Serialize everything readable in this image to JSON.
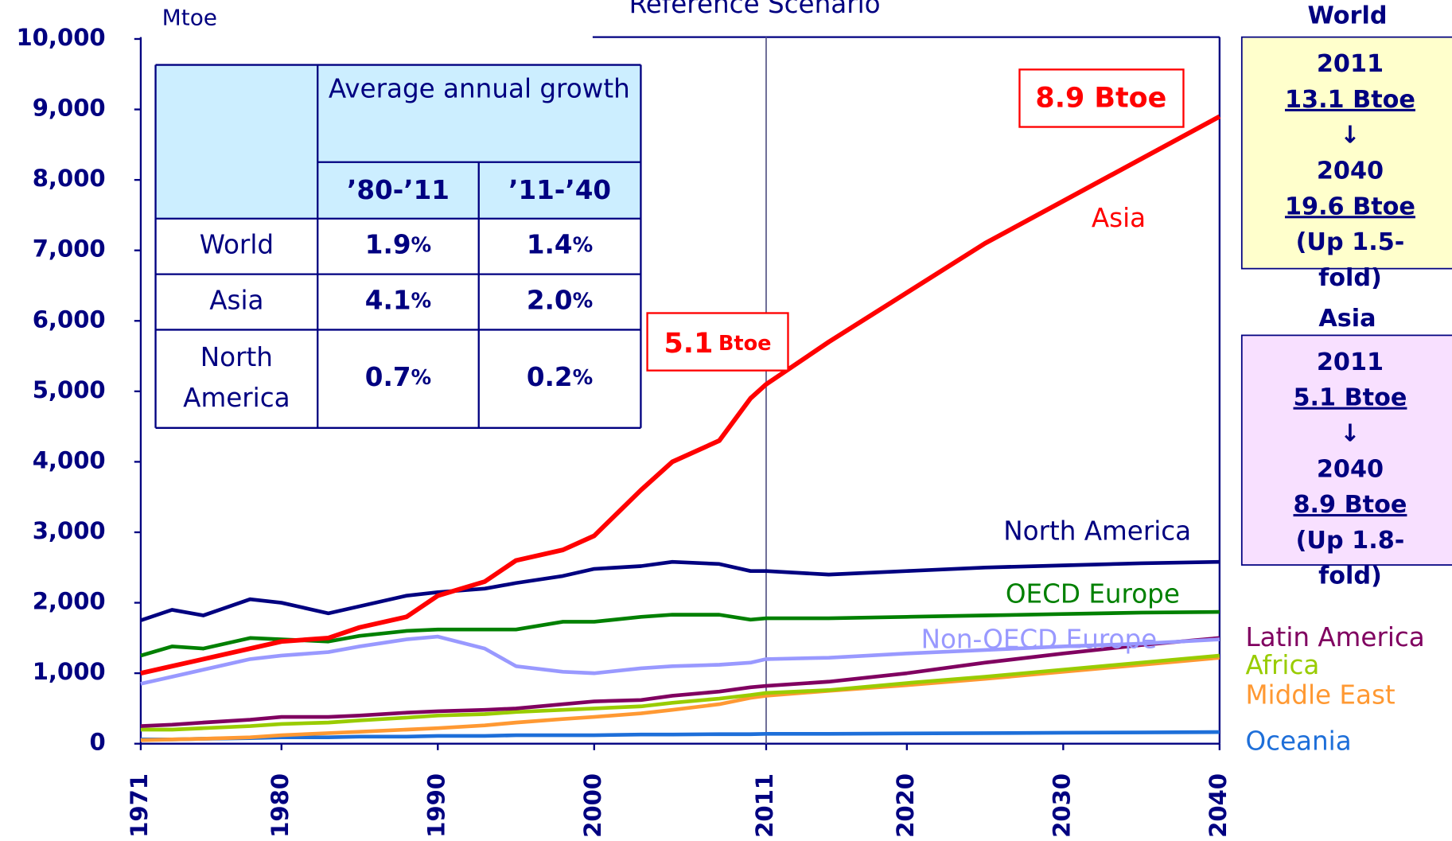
{
  "chart_data": {
    "type": "line",
    "title": "Reference Scenario",
    "y_label": "Mtoe",
    "x": [
      1971,
      1973,
      1975,
      1978,
      1980,
      1983,
      1985,
      1988,
      1990,
      1993,
      1995,
      1998,
      2000,
      2003,
      2005,
      2008,
      2010,
      2011,
      2015,
      2020,
      2025,
      2030,
      2035,
      2040
    ],
    "series": [
      {
        "name": "Asia",
        "color": "#ff0000",
        "values": [
          1000,
          1100,
          1200,
          1350,
          1450,
          1500,
          1650,
          1800,
          2100,
          2300,
          2600,
          2750,
          2950,
          3600,
          4000,
          4300,
          4900,
          5100,
          5700,
          6400,
          7100,
          7700,
          8300,
          8900
        ]
      },
      {
        "name": "North America",
        "color": "#000080",
        "values": [
          1750,
          1900,
          1820,
          2050,
          2000,
          1850,
          1950,
          2100,
          2150,
          2200,
          2280,
          2380,
          2480,
          2520,
          2580,
          2550,
          2450,
          2450,
          2400,
          2450,
          2500,
          2530,
          2560,
          2580
        ]
      },
      {
        "name": "OECD Europe",
        "color": "#008000",
        "values": [
          1250,
          1380,
          1350,
          1500,
          1480,
          1450,
          1530,
          1600,
          1620,
          1620,
          1620,
          1730,
          1730,
          1800,
          1830,
          1830,
          1760,
          1780,
          1780,
          1800,
          1820,
          1840,
          1860,
          1870
        ]
      },
      {
        "name": "Non-OECD Europe",
        "color": "#9999ff",
        "values": [
          850,
          950,
          1050,
          1200,
          1250,
          1300,
          1380,
          1480,
          1520,
          1350,
          1100,
          1020,
          1000,
          1070,
          1100,
          1120,
          1150,
          1200,
          1220,
          1280,
          1330,
          1380,
          1420,
          1480
        ]
      },
      {
        "name": "Latin America",
        "color": "#800060",
        "values": [
          250,
          270,
          300,
          340,
          380,
          380,
          400,
          440,
          460,
          480,
          500,
          560,
          600,
          620,
          680,
          740,
          800,
          820,
          880,
          1000,
          1150,
          1280,
          1400,
          1500
        ]
      },
      {
        "name": "Africa",
        "color": "#99cc00",
        "values": [
          200,
          200,
          220,
          250,
          280,
          300,
          330,
          370,
          400,
          420,
          450,
          480,
          500,
          530,
          580,
          640,
          690,
          720,
          760,
          860,
          950,
          1050,
          1150,
          1250
        ]
      },
      {
        "name": "Middle East",
        "color": "#ff9933",
        "values": [
          50,
          60,
          70,
          90,
          120,
          150,
          170,
          200,
          220,
          260,
          300,
          350,
          380,
          430,
          480,
          560,
          650,
          680,
          750,
          830,
          920,
          1020,
          1120,
          1220
        ]
      },
      {
        "name": "Oceania",
        "color": "#1e6fd9",
        "values": [
          60,
          60,
          70,
          80,
          90,
          90,
          100,
          100,
          110,
          110,
          120,
          120,
          120,
          130,
          130,
          135,
          135,
          140,
          140,
          145,
          150,
          155,
          160,
          165
        ]
      }
    ],
    "xlim": [
      1971,
      2040
    ],
    "xticks": [
      1971,
      1980,
      1990,
      2000,
      2011,
      2020,
      2030,
      2040
    ],
    "ylim": [
      0,
      10000
    ],
    "yticks": [
      0,
      {
        "value": 1000,
        "label": "1,000"
      },
      {
        "value": 2000,
        "label": "2,000"
      },
      {
        "value": 3000,
        "label": "3,000"
      },
      {
        "value": 4000,
        "label": "4,000"
      },
      {
        "value": 5000,
        "label": "5,000"
      },
      {
        "value": 6000,
        "label": "6,000"
      },
      {
        "value": 7000,
        "label": "7,000"
      },
      {
        "value": 8000,
        "label": "8,000"
      },
      {
        "value": 9000,
        "label": "9,000"
      },
      {
        "value": 10000,
        "label": "10,000"
      }
    ],
    "vline": 2011,
    "annotations": [
      {
        "main": "8.9 Btoe"
      },
      {
        "main": "5.1",
        "unit": "Btoe"
      }
    ],
    "table": {
      "header": "Average annual growth",
      "columns": [
        "’80-’11",
        "’11-’40"
      ],
      "rows": [
        [
          "World",
          "1.9",
          "1.4"
        ],
        [
          "Asia",
          "4.1",
          "2.0"
        ],
        [
          "North America",
          "0.7",
          "0.2"
        ]
      ],
      "unit": "%"
    },
    "boxes": [
      {
        "title": "World",
        "lines": [
          "2011",
          "13.1 Btoe",
          "↓",
          "2040",
          "19.6 Btoe",
          "(Up 1.5-",
          "fold)"
        ]
      },
      {
        "title": "Asia",
        "lines": [
          "2011",
          "5.1 Btoe",
          "↓",
          "2040",
          "8.9 Btoe",
          "(Up 1.8-",
          "fold)"
        ]
      }
    ]
  }
}
